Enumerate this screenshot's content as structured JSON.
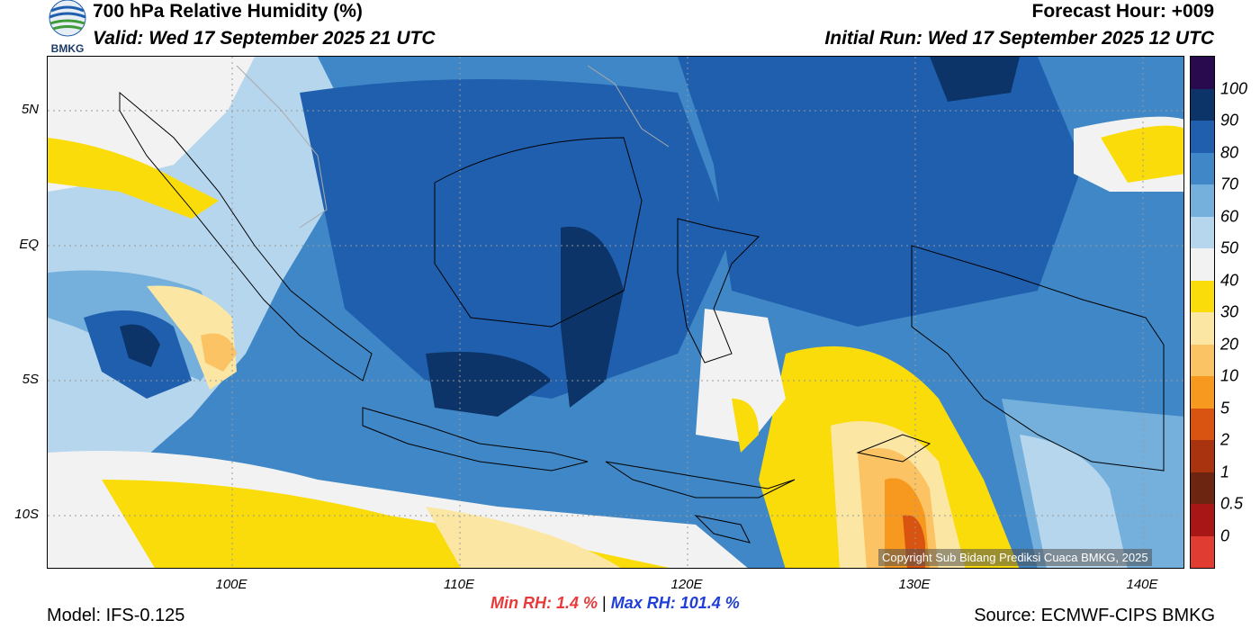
{
  "header": {
    "title": "700 hPa Relative Humidity (%)",
    "valid": "Valid: Wed 17 September 2025 21 UTC",
    "forecast_hour": "Forecast Hour: +009",
    "initial_run": "Initial Run: Wed 17 September 2025 12 UTC"
  },
  "logo": {
    "text": "BMKG",
    "icon": "bmkg-logo"
  },
  "map": {
    "lat_labels": [
      "5N",
      "EQ",
      "5S",
      "10S"
    ],
    "lon_labels": [
      "100E",
      "110E",
      "120E",
      "130E",
      "140E"
    ],
    "copyright": "Copyright Sub Bidang Prediksi Cuaca BMKG, 2025"
  },
  "colorbar": {
    "labels": [
      "100",
      "90",
      "80",
      "70",
      "60",
      "50",
      "40",
      "30",
      "20",
      "10",
      "5",
      "2",
      "1",
      "0.5",
      "0"
    ],
    "colors": [
      "#2a0a4e",
      "#0d3468",
      "#1f5fae",
      "#3f87c6",
      "#74b0db",
      "#b6d6ee",
      "#f2f2f2",
      "#f9dc0a",
      "#fbe7a3",
      "#fbc364",
      "#f7991e",
      "#d95410",
      "#a8330e",
      "#6b2510",
      "#a81616",
      "#e03c32"
    ]
  },
  "stats": {
    "min_rh": "Min RH:   1.4 %",
    "separator": "|",
    "max_rh": "Max RH: 101.4 %"
  },
  "footer": {
    "model": "Model: IFS-0.125",
    "source": "Source: ECMWF-CIPS BMKG"
  }
}
